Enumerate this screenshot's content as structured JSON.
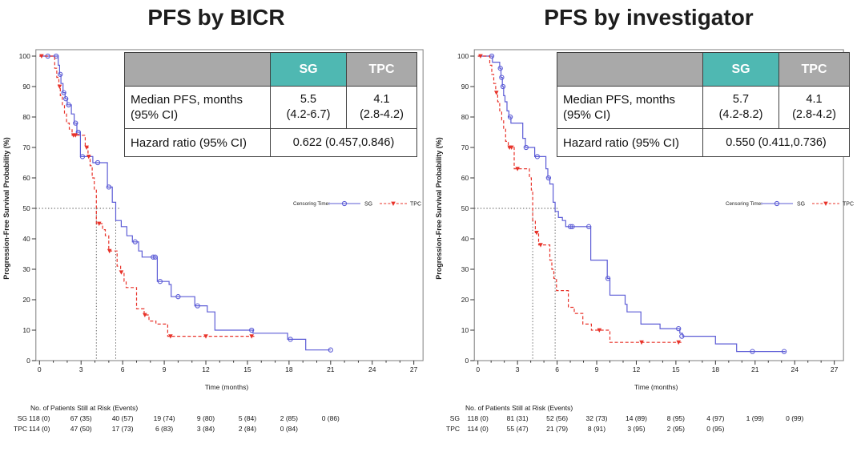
{
  "page": {
    "background": "#ffffff"
  },
  "colors": {
    "sg": "#5c5cd6",
    "tpc": "#e8332a",
    "teal_header": "#4fb8b2",
    "gray_header": "#a9a9a9",
    "table_border": "#3f3f3f",
    "reference_dotted": "#555555"
  },
  "panels": [
    {
      "title": "PFS by BICR",
      "stats_table": {
        "header_blank": "",
        "header_sg": "SG",
        "header_tpc": "TPC",
        "median_label_line1": "Median PFS, months",
        "median_label_line2": "(95% CI)",
        "sg_median": "5.5",
        "sg_ci": "(4.2-6.7)",
        "tpc_median": "4.1",
        "tpc_ci": "(2.8-4.2)",
        "hr_label": "Hazard ratio (95% CI)",
        "hr_value": "0.622 (0.457,0.846)"
      },
      "legend": {
        "prefix": "Censoring Time:",
        "items": [
          "SG",
          "TPC"
        ]
      },
      "risk_table": {
        "title": "No. of Patients Still at Risk (Events)",
        "rows": [
          {
            "label": "SG",
            "values": [
              "118 (0)",
              "67 (35)",
              "40 (57)",
              "19 (74)",
              "9 (80)",
              "5 (84)",
              "2 (85)",
              "0 (86)"
            ]
          },
          {
            "label": "TPC",
            "values": [
              "114 (0)",
              "47 (50)",
              "17 (73)",
              "6 (83)",
              "3 (84)",
              "2 (84)",
              "0 (84)"
            ]
          }
        ]
      }
    },
    {
      "title": "PFS by investigator",
      "stats_table": {
        "header_blank": "",
        "header_sg": "SG",
        "header_tpc": "TPC",
        "median_label_line1": "Median PFS, months",
        "median_label_line2": "(95% CI)",
        "sg_median": "5.7",
        "sg_ci": "(4.2-8.2)",
        "tpc_median": "4.1",
        "tpc_ci": "(2.8-4.2)",
        "hr_label": "Hazard ratio (95% CI)",
        "hr_value": "0.550 (0.411,0.736)"
      },
      "legend": {
        "prefix": "Censoring Time:",
        "items": [
          "SG",
          "TPC"
        ]
      },
      "risk_table": {
        "title": "No. of Patients Still at Risk (Events)",
        "rows": [
          {
            "label": "SG",
            "values": [
              "118 (0)",
              "81 (31)",
              "52 (56)",
              "32 (73)",
              "14 (89)",
              "8 (95)",
              "4 (97)",
              "1 (99)",
              "0 (99)"
            ]
          },
          {
            "label": "TPC",
            "values": [
              "114 (0)",
              "55 (47)",
              "21 (79)",
              "8 (91)",
              "3 (95)",
              "2 (95)",
              "0 (95)"
            ]
          }
        ]
      }
    }
  ],
  "chart_data": [
    {
      "type": "line",
      "subtype": "kaplan-meier-step",
      "title": "PFS by BICR",
      "xlabel": "Time (months)",
      "ylabel": "Progression-Free Survival Probability (%)",
      "xlim": [
        0,
        27
      ],
      "ylim": [
        0,
        100
      ],
      "xticks": [
        0,
        3,
        6,
        9,
        12,
        15,
        18,
        21,
        24,
        27
      ],
      "yticks": [
        0,
        10,
        20,
        30,
        40,
        50,
        60,
        70,
        80,
        90,
        100
      ],
      "grid": false,
      "legend_position": "right-middle",
      "reference_lines": {
        "y": 50,
        "h_to": 5.8,
        "medians": [
          4.1,
          5.5
        ]
      },
      "series": [
        {
          "name": "SG",
          "color": "#5c5cd6",
          "dash": false,
          "marker": "circle",
          "median_months": 5.5,
          "steps": [
            [
              0,
              100
            ],
            [
              1.35,
              97
            ],
            [
              1.45,
              94
            ],
            [
              1.55,
              91
            ],
            [
              1.7,
              88
            ],
            [
              1.85,
              86
            ],
            [
              2.0,
              84
            ],
            [
              2.3,
              81
            ],
            [
              2.5,
              78
            ],
            [
              2.7,
              75
            ],
            [
              2.95,
              67
            ],
            [
              3.85,
              65
            ],
            [
              4.9,
              57
            ],
            [
              5.25,
              52
            ],
            [
              5.5,
              46
            ],
            [
              5.9,
              44
            ],
            [
              6.3,
              41
            ],
            [
              6.7,
              39
            ],
            [
              7.15,
              36
            ],
            [
              7.4,
              34
            ],
            [
              8.5,
              26
            ],
            [
              9.35,
              25
            ],
            [
              9.5,
              21
            ],
            [
              11.2,
              18
            ],
            [
              12.1,
              16
            ],
            [
              12.65,
              10
            ],
            [
              15.4,
              9
            ],
            [
              17.9,
              7
            ],
            [
              19.2,
              3.5
            ]
          ],
          "end_x": 21.0,
          "censors": [
            [
              0.6,
              100
            ],
            [
              1.2,
              100
            ],
            [
              1.5,
              94
            ],
            [
              1.75,
              88
            ],
            [
              1.9,
              86
            ],
            [
              2.1,
              84
            ],
            [
              2.6,
              78
            ],
            [
              2.8,
              75
            ],
            [
              3.1,
              67
            ],
            [
              4.2,
              65
            ],
            [
              5.0,
              57
            ],
            [
              6.9,
              39
            ],
            [
              8.2,
              34
            ],
            [
              8.35,
              34
            ],
            [
              8.7,
              26
            ],
            [
              10.0,
              21
            ],
            [
              11.4,
              18
            ],
            [
              15.3,
              10
            ],
            [
              18.1,
              7
            ],
            [
              21.0,
              3.5
            ]
          ]
        },
        {
          "name": "TPC",
          "color": "#e8332a",
          "dash": true,
          "marker": "triangle",
          "median_months": 4.1,
          "steps": [
            [
              0,
              100
            ],
            [
              1.1,
              96
            ],
            [
              1.25,
              93
            ],
            [
              1.4,
              90
            ],
            [
              1.5,
              87
            ],
            [
              1.65,
              84
            ],
            [
              1.8,
              81
            ],
            [
              1.95,
              78
            ],
            [
              2.15,
              76
            ],
            [
              2.35,
              74
            ],
            [
              3.3,
              70
            ],
            [
              3.5,
              67
            ],
            [
              3.65,
              64
            ],
            [
              3.8,
              60
            ],
            [
              3.95,
              56
            ],
            [
              4.1,
              45
            ],
            [
              4.55,
              43
            ],
            [
              4.75,
              41
            ],
            [
              5.0,
              36
            ],
            [
              5.6,
              31
            ],
            [
              5.85,
              29
            ],
            [
              6.1,
              26
            ],
            [
              6.25,
              24
            ],
            [
              7.0,
              17
            ],
            [
              7.55,
              15
            ],
            [
              7.9,
              13
            ],
            [
              8.4,
              12
            ],
            [
              9.25,
              8
            ]
          ],
          "end_x": 15.5,
          "censors": [
            [
              0.15,
              100
            ],
            [
              1.45,
              90
            ],
            [
              2.45,
              74
            ],
            [
              2.6,
              74
            ],
            [
              3.4,
              70
            ],
            [
              3.55,
              67
            ],
            [
              4.3,
              45
            ],
            [
              5.05,
              36
            ],
            [
              5.9,
              29
            ],
            [
              7.6,
              15
            ],
            [
              9.45,
              8
            ],
            [
              12.0,
              8
            ],
            [
              15.3,
              8
            ]
          ]
        }
      ]
    },
    {
      "type": "line",
      "subtype": "kaplan-meier-step",
      "title": "PFS by investigator",
      "xlabel": "Time (months)",
      "ylabel": "Progression-Free Survival Probability (%)",
      "xlim": [
        0,
        27
      ],
      "ylim": [
        0,
        100
      ],
      "xticks": [
        0,
        3,
        6,
        9,
        12,
        15,
        18,
        21,
        24,
        27
      ],
      "yticks": [
        0,
        10,
        20,
        30,
        40,
        50,
        60,
        70,
        80,
        90,
        100
      ],
      "grid": false,
      "legend_position": "right-middle",
      "reference_lines": {
        "y": 50,
        "h_to": 6.1,
        "medians": [
          4.15,
          5.85
        ]
      },
      "series": [
        {
          "name": "SG",
          "color": "#5c5cd6",
          "dash": false,
          "marker": "circle",
          "median_months": 5.7,
          "steps": [
            [
              0,
              100
            ],
            [
              1.1,
              98
            ],
            [
              1.65,
              96
            ],
            [
              1.75,
              93
            ],
            [
              1.85,
              90
            ],
            [
              1.95,
              87
            ],
            [
              2.05,
              85
            ],
            [
              2.2,
              82
            ],
            [
              2.35,
              80
            ],
            [
              2.5,
              78
            ],
            [
              3.4,
              73
            ],
            [
              3.6,
              70
            ],
            [
              4.3,
              67
            ],
            [
              5.15,
              63
            ],
            [
              5.3,
              60
            ],
            [
              5.45,
              58
            ],
            [
              5.7,
              52
            ],
            [
              5.85,
              49
            ],
            [
              6.1,
              47
            ],
            [
              6.4,
              46
            ],
            [
              6.65,
              44
            ],
            [
              8.55,
              33
            ],
            [
              9.8,
              27
            ],
            [
              10.0,
              21.5
            ],
            [
              11.15,
              18.5
            ],
            [
              11.3,
              16
            ],
            [
              12.35,
              12
            ],
            [
              13.8,
              10.5
            ],
            [
              15.3,
              9
            ],
            [
              15.5,
              8
            ],
            [
              18.0,
              5.5
            ],
            [
              19.6,
              3
            ]
          ],
          "end_x": 23.3,
          "censors": [
            [
              1.05,
              100
            ],
            [
              1.7,
              96
            ],
            [
              1.8,
              93
            ],
            [
              1.9,
              90
            ],
            [
              2.45,
              80
            ],
            [
              3.65,
              70
            ],
            [
              4.5,
              67
            ],
            [
              5.35,
              60
            ],
            [
              7.0,
              44
            ],
            [
              7.15,
              44
            ],
            [
              8.4,
              44
            ],
            [
              9.85,
              27
            ],
            [
              15.2,
              10.5
            ],
            [
              15.45,
              8
            ],
            [
              20.8,
              3
            ],
            [
              23.2,
              3
            ]
          ]
        },
        {
          "name": "TPC",
          "color": "#e8332a",
          "dash": true,
          "marker": "triangle",
          "median_months": 4.1,
          "steps": [
            [
              0,
              100
            ],
            [
              0.9,
              97
            ],
            [
              1.05,
              94
            ],
            [
              1.2,
              91
            ],
            [
              1.35,
              88
            ],
            [
              1.5,
              85
            ],
            [
              1.65,
              82
            ],
            [
              1.8,
              79
            ],
            [
              1.95,
              76
            ],
            [
              2.1,
              72
            ],
            [
              2.3,
              70
            ],
            [
              2.75,
              63
            ],
            [
              3.9,
              60
            ],
            [
              4.05,
              56
            ],
            [
              4.15,
              46
            ],
            [
              4.35,
              42
            ],
            [
              4.6,
              38
            ],
            [
              5.45,
              33
            ],
            [
              5.6,
              30
            ],
            [
              5.75,
              27
            ],
            [
              5.95,
              23
            ],
            [
              6.85,
              17.5
            ],
            [
              7.3,
              15.5
            ],
            [
              7.95,
              12
            ],
            [
              8.6,
              10
            ],
            [
              10.0,
              6
            ]
          ],
          "end_x": 15.5,
          "censors": [
            [
              0.2,
              100
            ],
            [
              1.4,
              88
            ],
            [
              2.4,
              70
            ],
            [
              2.55,
              70
            ],
            [
              3.0,
              63
            ],
            [
              4.45,
              42
            ],
            [
              4.75,
              38
            ],
            [
              9.2,
              10
            ],
            [
              12.4,
              6
            ],
            [
              15.2,
              6
            ]
          ]
        }
      ]
    }
  ]
}
